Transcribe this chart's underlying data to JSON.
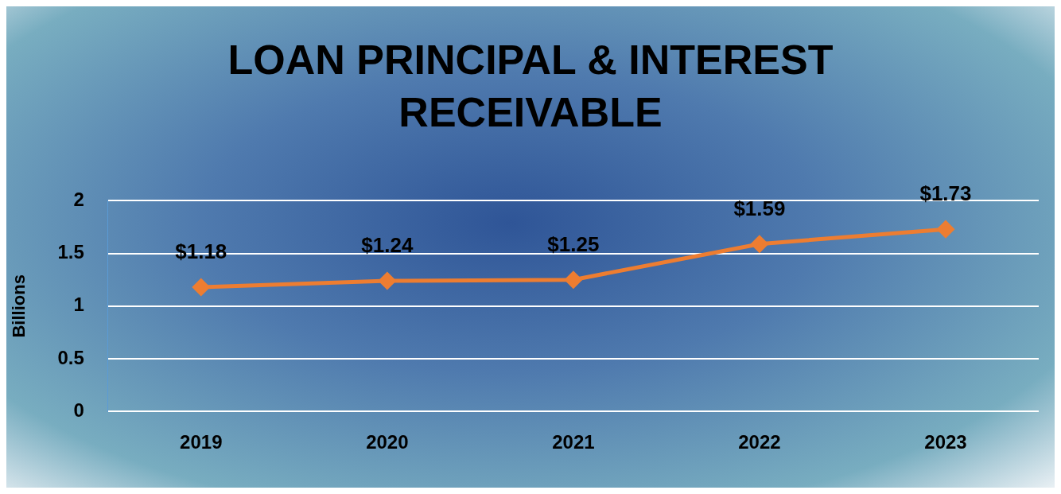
{
  "chart_data": {
    "type": "line",
    "title": "LOAN PRINCIPAL & INTEREST RECEIVABLE",
    "ylabel": "Billions",
    "categories": [
      "2019",
      "2020",
      "2021",
      "2022",
      "2023"
    ],
    "series": [
      {
        "color": "#ed7d31",
        "values": [
          1.18,
          1.24,
          1.25,
          1.59,
          1.73
        ],
        "value_labels": [
          "$1.18",
          "$1.24",
          "$1.25",
          "$1.59",
          "$1.73"
        ]
      }
    ],
    "ylim": [
      0,
      2
    ],
    "yticks": [
      0,
      0.5,
      1,
      1.5,
      2
    ],
    "grid": "y",
    "legend": false,
    "marker": "diamond",
    "line_style": "solid"
  }
}
